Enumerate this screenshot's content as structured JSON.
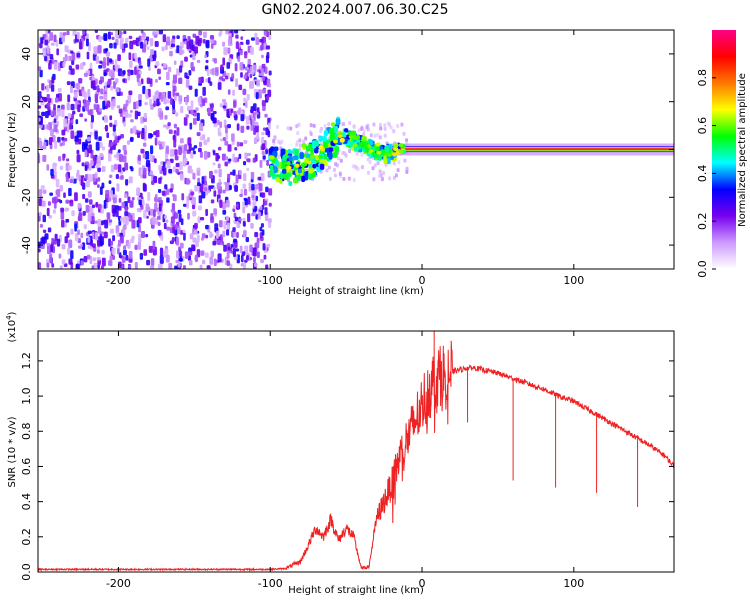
{
  "figure_title": "GN02.2024.007.06.30.C25",
  "chart_data": [
    {
      "type": "heatmap",
      "description_of_content": "spectrogram",
      "xlabel": "Height of straight line (km)",
      "ylabel": "Frequency (Hz)",
      "xlim": [
        -253,
        166
      ],
      "ylim": [
        -50,
        50
      ],
      "xticks": [
        -200,
        -100,
        0,
        100
      ],
      "xtick_labels": [
        "-200",
        "-100",
        "0",
        "100"
      ],
      "yticks": [
        -40,
        -20,
        0,
        20,
        40
      ],
      "ytick_labels": [
        "-40",
        "-20",
        "0",
        "20",
        "40"
      ],
      "colorbar": {
        "label": "Normalized spectral amplitude",
        "range": [
          0,
          1
        ],
        "ticks": [
          0.0,
          0.2,
          0.4,
          0.6,
          0.8
        ],
        "tick_labels": [
          "0.0",
          "0.2",
          "0.4",
          "0.6",
          "0.8"
        ],
        "colormap": [
          "#ffffff",
          "#cc99ff",
          "#7700ee",
          "#0000ff",
          "#00ffff",
          "#00ff00",
          "#ffff00",
          "#ff7700",
          "#ff0000",
          "#ff0088"
        ]
      },
      "regions": [
        {
          "name": "noise",
          "x_range": [
            -253,
            -100
          ],
          "freq_range": [
            -50,
            50
          ],
          "amplitude": 0.2
        },
        {
          "name": "transition",
          "x_range": [
            -100,
            -20
          ],
          "amplitude": 0.4
        },
        {
          "name": "carrier",
          "x_range": [
            -20,
            166
          ],
          "freq_center": 0,
          "amplitude": 0.95
        }
      ],
      "signal_track": {
        "x": [
          -100,
          -90,
          -80,
          -70,
          -60,
          -55,
          -50,
          -45,
          -40,
          -35,
          -30,
          -25,
          -20,
          -15,
          -10,
          0,
          50,
          100,
          140,
          166
        ],
        "freq": [
          -5,
          -8,
          -6,
          -3,
          3,
          6,
          5,
          4,
          2,
          1,
          -1,
          -2,
          -1,
          0,
          0,
          0,
          0,
          0,
          0,
          0
        ]
      },
      "grid": false
    },
    {
      "type": "line",
      "xlabel": "Height of straight line (km)",
      "ylabel": "SNR (10 * v/v)",
      "scale_label": "(x10^4)",
      "scale_label_base": "(x10",
      "scale_label_exp": "4",
      "scale_label_end": ")",
      "xlim": [
        -253,
        166
      ],
      "ylim": [
        0.0,
        1.37
      ],
      "xticks": [
        -200,
        -100,
        0,
        100
      ],
      "xtick_labels": [
        "-200",
        "-100",
        "0",
        "100"
      ],
      "yticks": [
        0.0,
        0.2,
        0.4,
        0.6,
        0.8,
        1.0,
        1.2
      ],
      "ytick_labels": [
        "0.0",
        "0.2",
        "0.4",
        "0.6",
        "0.8",
        "1.0",
        "1.2"
      ],
      "series": [
        {
          "color": "#ee2222",
          "x": [
            -253,
            -200,
            -150,
            -100,
            -90,
            -80,
            -75,
            -70,
            -65,
            -60,
            -55,
            -50,
            -45,
            -40,
            -35,
            -30,
            -25,
            -20,
            -15,
            -10,
            -5,
            0,
            5,
            10,
            15,
            20,
            25,
            30,
            35,
            40,
            50,
            60,
            70,
            80,
            90,
            100,
            110,
            120,
            130,
            140,
            150,
            160,
            166
          ],
          "y": [
            0.015,
            0.015,
            0.015,
            0.015,
            0.02,
            0.06,
            0.15,
            0.25,
            0.2,
            0.3,
            0.18,
            0.25,
            0.2,
            0.02,
            0.03,
            0.3,
            0.4,
            0.5,
            0.65,
            0.75,
            0.85,
            0.95,
            1.05,
            1.1,
            1.12,
            1.14,
            1.15,
            1.16,
            1.16,
            1.15,
            1.13,
            1.1,
            1.07,
            1.04,
            1.0,
            0.97,
            0.92,
            0.87,
            0.82,
            0.77,
            0.72,
            0.66,
            0.6
          ]
        }
      ],
      "dropouts": [
        {
          "x": 30,
          "y_min": 0.85
        },
        {
          "x": 60,
          "y_min": 0.52
        },
        {
          "x": 88,
          "y_min": 0.48
        },
        {
          "x": 115,
          "y_min": 0.45
        },
        {
          "x": 142,
          "y_min": 0.37
        }
      ],
      "grid": false
    }
  ]
}
